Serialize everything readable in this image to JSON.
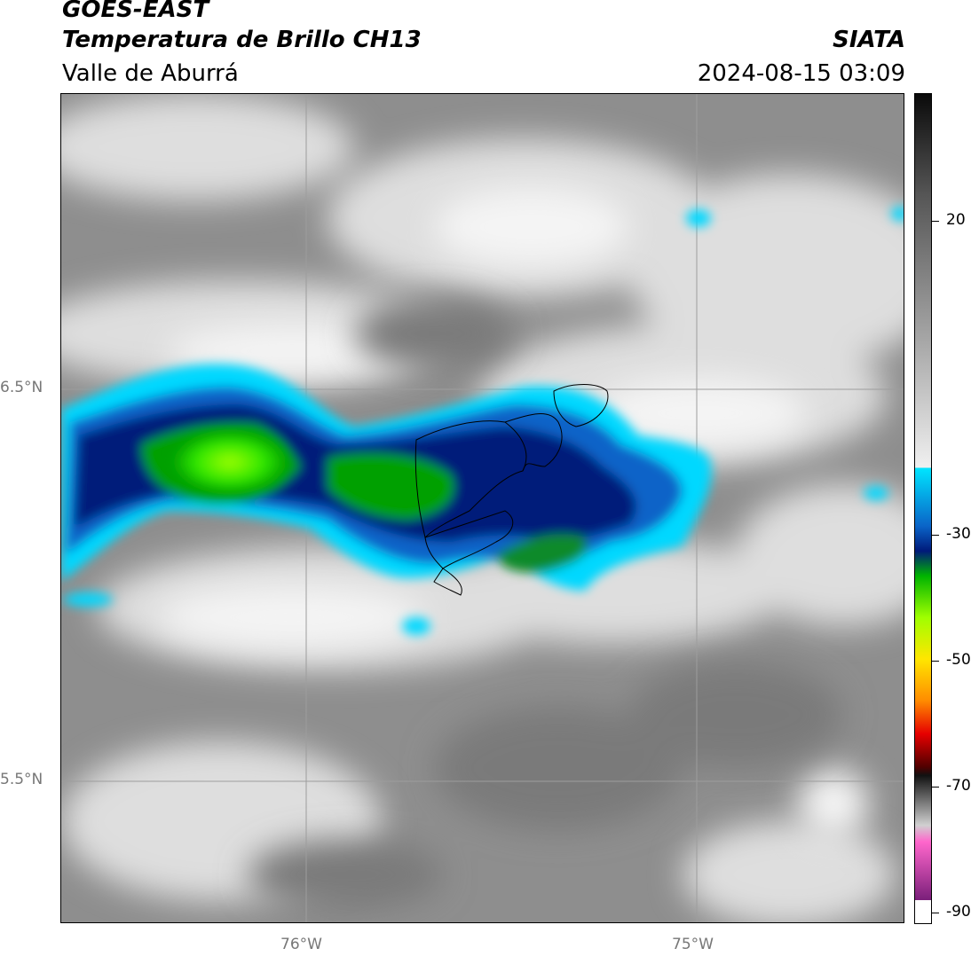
{
  "header": {
    "satellite": "GOES-EAST",
    "product": "Temperatura de Brillo CH13",
    "region": "Valle de Aburrá",
    "agency": "SIATA",
    "datetime": "2024-08-15 03:09"
  },
  "map": {
    "lat_labels": [
      "6.5°N",
      "5.5°N"
    ],
    "lon_labels": [
      "76°W",
      "75°W"
    ],
    "gridlines": true
  },
  "colorbar": {
    "ticks": [
      "20",
      "-30",
      "-50",
      "-70",
      "-90"
    ],
    "colors": {
      "warm_top": "#0a0a0a",
      "gray_mid": "#8a8a8a",
      "white": "#f5f5f5",
      "cyan": "#00e5ff",
      "blue": "#0a64c8",
      "navy": "#001a7a",
      "green": "#00b400",
      "lime": "#a0ff00",
      "yellow": "#ffe600",
      "orange": "#ff8c00",
      "red": "#e60000",
      "dark_red": "#500000",
      "pink": "#ff66cc",
      "purple": "#7a1f7a"
    }
  }
}
